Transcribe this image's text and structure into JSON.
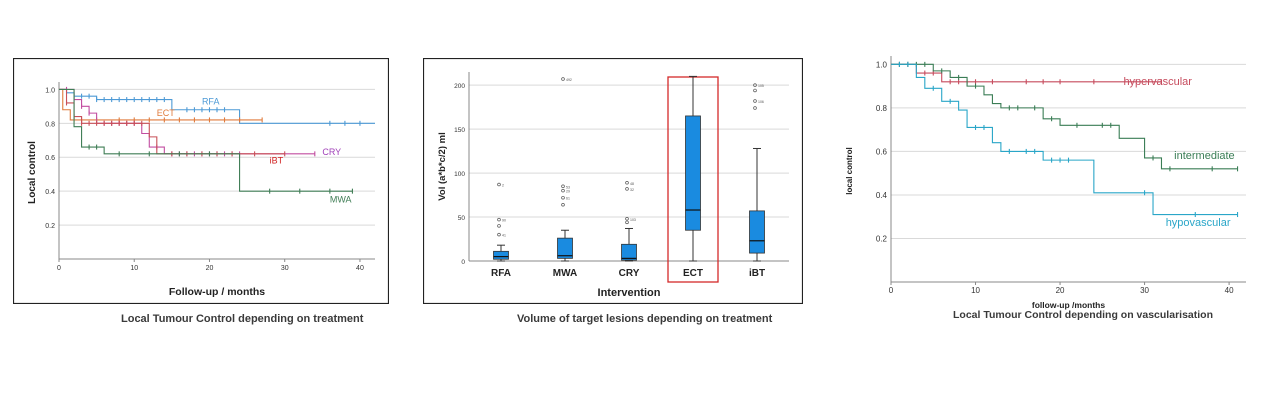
{
  "chart_data": [
    {
      "type": "line",
      "subtype": "kaplan-meier",
      "caption": "Local Tumour Control depending on treatment",
      "xlabel": "Follow-up / months",
      "ylabel": "Local control",
      "xlim": [
        0,
        42
      ],
      "ylim": [
        0,
        1.02
      ],
      "xticks": [
        "0",
        "10",
        "20",
        "30",
        "40"
      ],
      "yticks": [
        "0.2",
        "0.4",
        "0.6",
        "0.8",
        "1.0"
      ],
      "grid": true,
      "series": [
        {
          "name": "RFA",
          "color": "#4d9ad6",
          "label_color": "#4d9ad6",
          "steps": [
            [
              0,
              1.0
            ],
            [
              1,
              0.98
            ],
            [
              2,
              0.96
            ],
            [
              5,
              0.94
            ],
            [
              15,
              0.88
            ],
            [
              24,
              0.8
            ],
            [
              42,
              0.8
            ]
          ],
          "censored": [
            2,
            3,
            4,
            5,
            6,
            7,
            8,
            9,
            10,
            11,
            12,
            13,
            14,
            17,
            18,
            19,
            20,
            21,
            22,
            36,
            38,
            40
          ]
        },
        {
          "name": "ECT",
          "color": "#e07b3c",
          "label_color": "#e07b3c",
          "steps": [
            [
              0,
              1.0
            ],
            [
              0.5,
              0.88
            ],
            [
              1.5,
              0.82
            ],
            [
              27,
              0.82
            ]
          ],
          "censored": [
            2,
            3,
            5,
            8,
            10,
            12,
            14,
            16,
            18,
            20,
            22,
            24,
            27
          ]
        },
        {
          "name": "CRY",
          "color": "#c24da0",
          "label_color": "#a040b8",
          "steps": [
            [
              0,
              1.0
            ],
            [
              2,
              0.94
            ],
            [
              3,
              0.9
            ],
            [
              4,
              0.86
            ],
            [
              5,
              0.8
            ],
            [
              11,
              0.74
            ],
            [
              12,
              0.66
            ],
            [
              14,
              0.62
            ],
            [
              34,
              0.62
            ]
          ],
          "censored": [
            1,
            2,
            3,
            4,
            6,
            7,
            8,
            9,
            10,
            13,
            15,
            16,
            17,
            18,
            19,
            20,
            21,
            22,
            23,
            24,
            34
          ]
        },
        {
          "name": "iBT",
          "color": "#c85058",
          "label_color": "#d02020",
          "steps": [
            [
              0,
              1.0
            ],
            [
              1,
              0.92
            ],
            [
              2,
              0.84
            ],
            [
              3,
              0.8
            ],
            [
              12,
              0.72
            ],
            [
              13,
              0.62
            ],
            [
              24,
              0.62
            ],
            [
              30,
              0.62
            ]
          ],
          "censored": [
            1,
            2,
            3,
            4,
            5,
            6,
            7,
            8,
            9,
            10,
            11,
            15,
            17,
            19,
            21,
            23,
            26,
            30
          ]
        },
        {
          "name": "MWA",
          "color": "#3f7d55",
          "label_color": "#3f7d55",
          "steps": [
            [
              0,
              1.0
            ],
            [
              2,
              0.78
            ],
            [
              3,
              0.66
            ],
            [
              6,
              0.62
            ],
            [
              24,
              0.4
            ],
            [
              39,
              0.4
            ]
          ],
          "censored": [
            4,
            5,
            8,
            12,
            16,
            20,
            28,
            32,
            36,
            39
          ]
        }
      ],
      "labels": [
        {
          "series": "RFA",
          "x": 19,
          "y": 0.93
        },
        {
          "series": "ECT",
          "x": 13,
          "y": 0.86
        },
        {
          "series": "CRY",
          "x": 35,
          "y": 0.63
        },
        {
          "series": "iBT",
          "x": 28,
          "y": 0.58
        },
        {
          "series": "MWA",
          "x": 36,
          "y": 0.35
        }
      ]
    },
    {
      "type": "box",
      "caption": "Volume of target lesions depending on treatment",
      "xlabel": "Intervention",
      "ylabel": "Vol (a*b*c/2) ml",
      "ylim": [
        0,
        215
      ],
      "yticks": [
        "0",
        "50",
        "100",
        "150",
        "200"
      ],
      "grid": true,
      "highlight": "ECT",
      "highlight_color": "#d42a2a",
      "box_color": "#1a8be0",
      "categories": [
        "RFA",
        "MWA",
        "CRY",
        "ECT",
        "iBT"
      ],
      "boxes": [
        {
          "q1": 2,
          "median": 5,
          "q3": 11,
          "whisker_low": 0,
          "whisker_high": 18,
          "outliers": [
            {
              "y": 87,
              "label": "2"
            },
            {
              "y": 47,
              "label": "90"
            },
            {
              "y": 40,
              "label": ""
            },
            {
              "y": 30,
              "label": "41"
            }
          ]
        },
        {
          "q1": 3,
          "median": 6,
          "q3": 26,
          "whisker_low": 0,
          "whisker_high": 35,
          "outliers": [
            {
              "y": 207,
              "label": "492"
            },
            {
              "y": 85,
              "label": "53"
            },
            {
              "y": 80,
              "label": "29"
            },
            {
              "y": 72,
              "label": "61"
            },
            {
              "y": 64,
              "label": ""
            }
          ]
        },
        {
          "q1": 1,
          "median": 3,
          "q3": 19,
          "whisker_low": 0,
          "whisker_high": 37,
          "outliers": [
            {
              "y": 89,
              "label": "48"
            },
            {
              "y": 82,
              "label": "32"
            },
            {
              "y": 48,
              "label": "103"
            },
            {
              "y": 44,
              "label": ""
            }
          ]
        },
        {
          "q1": 35,
          "median": 58,
          "q3": 165,
          "whisker_low": 0,
          "whisker_high": 210,
          "outliers": []
        },
        {
          "q1": 9,
          "median": 23,
          "q3": 57,
          "whisker_low": 0,
          "whisker_high": 128,
          "outliers": [
            {
              "y": 200,
              "label": "105"
            },
            {
              "y": 194,
              "label": ""
            },
            {
              "y": 182,
              "label": "106"
            },
            {
              "y": 174,
              "label": ""
            }
          ]
        }
      ]
    },
    {
      "type": "line",
      "subtype": "kaplan-meier",
      "caption": "Local Tumour Control depending on vascularisation",
      "xlabel": "follow-up /months",
      "ylabel": "local control",
      "xlim": [
        0,
        42
      ],
      "ylim": [
        0,
        1.02
      ],
      "xticks": [
        "0",
        "10",
        "20",
        "30",
        "40"
      ],
      "yticks": [
        "0.2",
        "0.4",
        "0.6",
        "0.8",
        "1.0"
      ],
      "grid": true,
      "series": [
        {
          "name": "hypervascular",
          "color": "#c64b5d",
          "steps": [
            [
              0,
              1.0
            ],
            [
              3,
              0.96
            ],
            [
              6,
              0.92
            ],
            [
              32,
              0.92
            ]
          ],
          "censored": [
            1,
            2,
            4,
            5,
            7,
            8,
            9,
            10,
            12,
            16,
            18,
            20,
            24,
            32
          ]
        },
        {
          "name": "intermediate",
          "color": "#3a7d55",
          "steps": [
            [
              0,
              1.0
            ],
            [
              5,
              0.97
            ],
            [
              7,
              0.94
            ],
            [
              9,
              0.9
            ],
            [
              11,
              0.86
            ],
            [
              12,
              0.82
            ],
            [
              13,
              0.8
            ],
            [
              18,
              0.75
            ],
            [
              20,
              0.72
            ],
            [
              27,
              0.66
            ],
            [
              30,
              0.57
            ],
            [
              31,
              0.57
            ],
            [
              32,
              0.52
            ],
            [
              41,
              0.52
            ]
          ],
          "censored": [
            1,
            2,
            3,
            4,
            6,
            8,
            10,
            14,
            15,
            17,
            19,
            22,
            25,
            26,
            31,
            33,
            38,
            41
          ]
        },
        {
          "name": "hypovascular",
          "color": "#2aa6c8",
          "steps": [
            [
              0,
              1.0
            ],
            [
              3,
              0.94
            ],
            [
              4,
              0.89
            ],
            [
              6,
              0.83
            ],
            [
              8,
              0.79
            ],
            [
              9,
              0.71
            ],
            [
              12,
              0.64
            ],
            [
              13,
              0.6
            ],
            [
              18,
              0.56
            ],
            [
              24,
              0.41
            ],
            [
              31,
              0.31
            ],
            [
              41,
              0.31
            ]
          ],
          "censored": [
            1,
            2,
            5,
            7,
            10,
            11,
            14,
            16,
            17,
            19,
            20,
            21,
            30,
            36,
            41
          ]
        }
      ],
      "labels": [
        {
          "series": "hypervascular",
          "x": 27.5,
          "y": 0.92
        },
        {
          "series": "intermediate",
          "x": 33.5,
          "y": 0.58
        },
        {
          "series": "hypovascular",
          "x": 32.5,
          "y": 0.27
        }
      ]
    }
  ]
}
